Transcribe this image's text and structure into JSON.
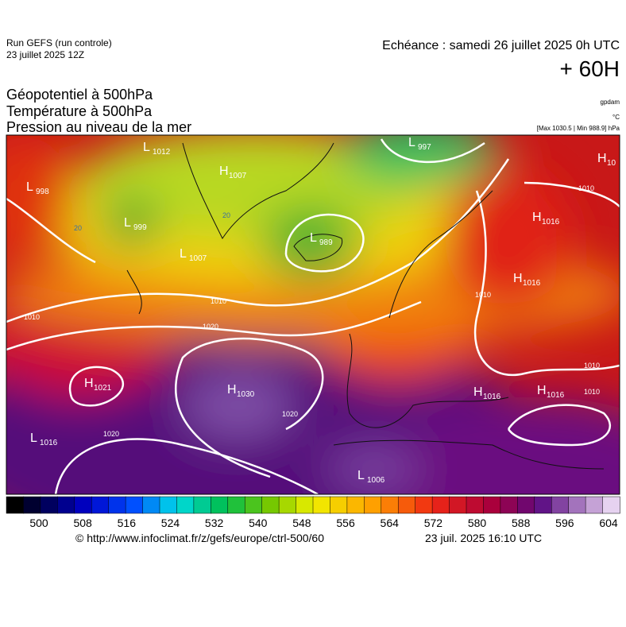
{
  "header": {
    "run": "Run GEFS (run controle)",
    "run_date": "23 juillet 2025 12Z",
    "valid": "Echéance : samedi 26 juillet 2025 0h UTC",
    "lead": "+ 60H",
    "fields": [
      "Géopotentiel à 500hPa",
      "Température à 500hPa",
      "Pression au niveau de la mer"
    ],
    "units": [
      "gpdam",
      "°C",
      "[Max 1030.5 | Min 988.9] hPa"
    ]
  },
  "pressure_centers": [
    {
      "kind": "L",
      "value": "1012"
    },
    {
      "kind": "H",
      "value": "1007"
    },
    {
      "kind": "L",
      "value": "997"
    },
    {
      "kind": "H",
      "value": "10"
    },
    {
      "kind": "L",
      "value": "998"
    },
    {
      "kind": "L",
      "value": "999"
    },
    {
      "kind": "L",
      "value": "989"
    },
    {
      "kind": "L",
      "value": "1007"
    },
    {
      "kind": "H",
      "value": "1016"
    },
    {
      "kind": "H",
      "value": "1016"
    },
    {
      "kind": "H",
      "value": "1021"
    },
    {
      "kind": "H",
      "value": "1030"
    },
    {
      "kind": "H",
      "value": "1016"
    },
    {
      "kind": "H",
      "value": "1016"
    },
    {
      "kind": "L",
      "value": "1016"
    },
    {
      "kind": "L",
      "value": "1006"
    }
  ],
  "isobar_labels": [
    "1010",
    "1010",
    "1020",
    "1020",
    "1020",
    "1010",
    "1010",
    "1010",
    "1010"
  ],
  "isotherm_labels": [
    "20",
    "20"
  ],
  "colorbar": {
    "ticks": [
      500,
      508,
      516,
      524,
      532,
      540,
      548,
      556,
      564,
      572,
      580,
      588,
      596,
      604
    ]
  },
  "footer": {
    "source": "© http://www.infoclimat.fr/z/gefs/europe/ctrl-500/60",
    "generated": "23 juil. 2025 16:10 UTC"
  }
}
